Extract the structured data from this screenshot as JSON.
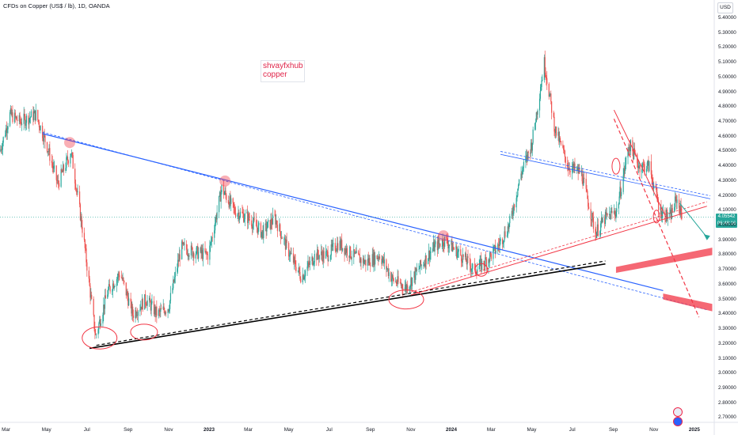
{
  "header": {
    "title": "CFDs on Copper (US$ / lb), 1D, OANDA",
    "currency": "USD"
  },
  "note": {
    "line1": "shvayfxhub",
    "line2": "copper"
  },
  "price_tag": {
    "price": "4.05542",
    "countdown": "06:48:16"
  },
  "colors": {
    "up": "#26a69a",
    "down": "#ef5350",
    "trendline_blue": "#2962ff",
    "accent_red": "#f23645",
    "black": "#000000"
  },
  "chart_data": {
    "type": "candlestick",
    "title": "CFDs on Copper (US$ / lb), 1D, OANDA",
    "y_axis": {
      "labels": [
        "5.40000",
        "5.30000",
        "5.20000",
        "5.10000",
        "5.00000",
        "4.90000",
        "4.80000",
        "4.70000",
        "4.60000",
        "4.50000",
        "4.40000",
        "4.30000",
        "4.20000",
        "4.10000",
        "4.00000",
        "3.90000",
        "3.80000",
        "3.70000",
        "3.60000",
        "3.50000",
        "3.40000",
        "3.30000",
        "3.20000",
        "3.10000",
        "3.00000",
        "2.90000",
        "2.80000",
        "2.70000"
      ],
      "range": [
        2.67,
        5.48
      ]
    },
    "x_axis": {
      "labels": [
        "Mar",
        "May",
        "Jul",
        "Sep",
        "Nov",
        "2023",
        "Mar",
        "May",
        "Jul",
        "Sep",
        "Nov",
        "2024",
        "Mar",
        "May",
        "Jul",
        "Sep",
        "Nov",
        "2025"
      ],
      "range": [
        "2022-02-20",
        "2025-01-31"
      ]
    },
    "path": [
      [
        "2022-02-20",
        4.5
      ],
      [
        "2022-03-07",
        4.75
      ],
      [
        "2022-03-22",
        4.7
      ],
      [
        "2022-04-15",
        4.75
      ],
      [
        "2022-05-01",
        4.55
      ],
      [
        "2022-05-18",
        4.28
      ],
      [
        "2022-06-07",
        4.5
      ],
      [
        "2022-06-25",
        3.95
      ],
      [
        "2022-07-14",
        3.25
      ],
      [
        "2022-08-01",
        3.55
      ],
      [
        "2022-08-20",
        3.68
      ],
      [
        "2022-09-08",
        3.4
      ],
      [
        "2022-09-28",
        3.5
      ],
      [
        "2022-10-15",
        3.4
      ],
      [
        "2022-11-01",
        3.45
      ],
      [
        "2022-11-20",
        3.85
      ],
      [
        "2022-12-10",
        3.82
      ],
      [
        "2022-12-31",
        3.8
      ],
      [
        "2023-01-20",
        4.25
      ],
      [
        "2023-02-08",
        4.1
      ],
      [
        "2023-03-01",
        4.05
      ],
      [
        "2023-03-22",
        3.95
      ],
      [
        "2023-04-10",
        4.05
      ],
      [
        "2023-04-28",
        3.85
      ],
      [
        "2023-05-20",
        3.65
      ],
      [
        "2023-06-10",
        3.8
      ],
      [
        "2023-06-28",
        3.8
      ],
      [
        "2023-07-15",
        3.88
      ],
      [
        "2023-08-05",
        3.8
      ],
      [
        "2023-08-25",
        3.75
      ],
      [
        "2023-09-15",
        3.8
      ],
      [
        "2023-10-05",
        3.63
      ],
      [
        "2023-10-25",
        3.58
      ],
      [
        "2023-11-15",
        3.72
      ],
      [
        "2023-12-05",
        3.85
      ],
      [
        "2023-12-22",
        3.9
      ],
      [
        "2024-01-15",
        3.8
      ],
      [
        "2024-02-05",
        3.7
      ],
      [
        "2024-02-20",
        3.75
      ],
      [
        "2024-03-10",
        3.85
      ],
      [
        "2024-03-28",
        4.0
      ],
      [
        "2024-04-15",
        4.35
      ],
      [
        "2024-05-01",
        4.55
      ],
      [
        "2024-05-20",
        5.1
      ],
      [
        "2024-06-05",
        4.65
      ],
      [
        "2024-06-25",
        4.4
      ],
      [
        "2024-07-15",
        4.35
      ],
      [
        "2024-08-05",
        3.95
      ],
      [
        "2024-08-20",
        4.05
      ],
      [
        "2024-09-06",
        4.1
      ],
      [
        "2024-09-25",
        4.55
      ],
      [
        "2024-10-10",
        4.4
      ],
      [
        "2024-10-25",
        4.4
      ],
      [
        "2024-11-10",
        4.1
      ],
      [
        "2024-11-25",
        4.05
      ],
      [
        "2024-12-05",
        4.18
      ],
      [
        "2024-12-15",
        4.05
      ]
    ],
    "current_price": 4.05542
  }
}
